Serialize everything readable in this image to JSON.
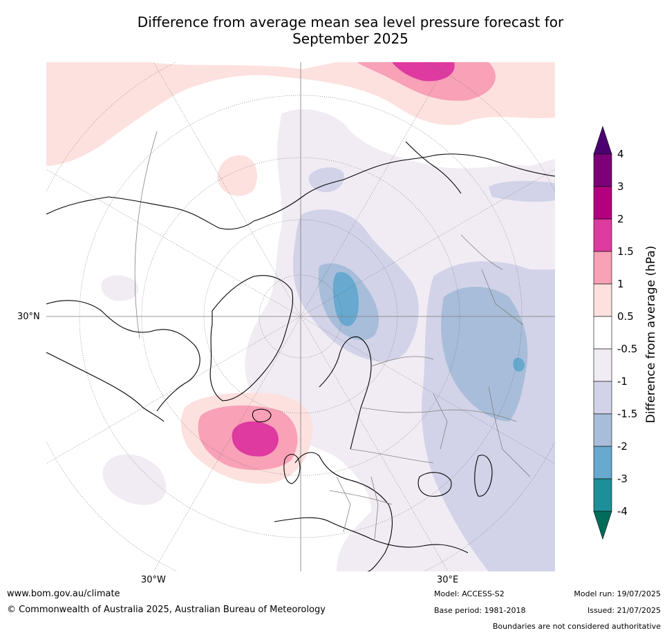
{
  "title": {
    "line1": "Difference from average mean sea level pressure forecast for",
    "line2": "September 2025"
  },
  "map": {
    "graticule_labels": {
      "left": "30°N",
      "bottom_left": "30°W",
      "bottom_right": "30°E"
    },
    "colors": {
      "water_bg": "#ffffff",
      "coast": "#000000",
      "border": "#808080",
      "grid": "#666666"
    }
  },
  "colorbar": {
    "title": "Difference from average (hPa)",
    "tick_labels": [
      "4",
      "3",
      "2",
      "1.5",
      "1",
      "0.5",
      "-0.5",
      "-1",
      "-1.5",
      "-2",
      "-3",
      "-4"
    ],
    "bands": [
      {
        "range": "> 4",
        "color": "#4b0070"
      },
      {
        "range": "3 to 4",
        "color": "#7d0078"
      },
      {
        "range": "2 to 3",
        "color": "#b3007f"
      },
      {
        "range": "1.5 to 2",
        "color": "#de3aa0"
      },
      {
        "range": "1 to 1.5",
        "color": "#f8a1b7"
      },
      {
        "range": "0.5 to 1",
        "color": "#fde1df"
      },
      {
        "range": "-0.5 to 0.5",
        "color": "#ffffff"
      },
      {
        "range": "-1 to -0.5",
        "color": "#f1ecf4"
      },
      {
        "range": "-1.5 to -1",
        "color": "#d2d3e8"
      },
      {
        "range": "-2 to -1.5",
        "color": "#a8bdd9"
      },
      {
        "range": "-3 to -2",
        "color": "#67a9cf"
      },
      {
        "range": "-4 to -3",
        "color": "#1c9099"
      },
      {
        "range": "< -4",
        "color": "#016c59"
      }
    ]
  },
  "footer": {
    "website": "www.bom.gov.au/climate",
    "copyright": "© Commonwealth of Australia 2025, Australian Bureau of Meteorology",
    "model": "Model: ACCESS-S2",
    "base_period": "Base period: 1981-2018",
    "model_run": "Model run: 19/07/2025",
    "issued": "Issued: 21/07/2025",
    "disclaimer": "Boundaries are not considered authoritative"
  }
}
